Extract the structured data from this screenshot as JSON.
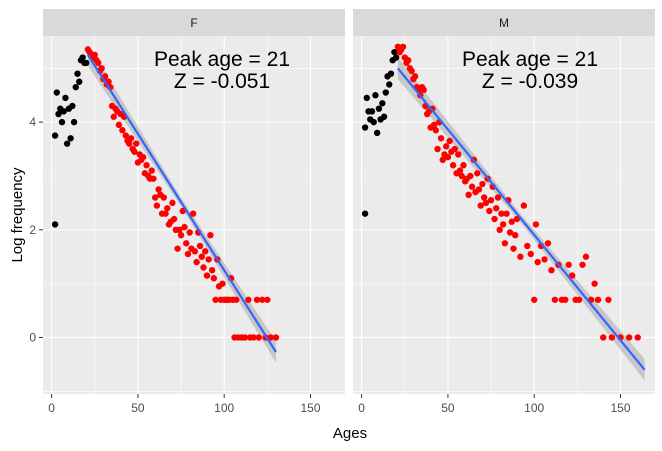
{
  "chart_data": {
    "type": "scatter",
    "xlabel": "Ages",
    "ylabel": "Log frequency",
    "xlim": [
      -5,
      170
    ],
    "ylim": [
      -1.05,
      5.6
    ],
    "x_ticks": [
      0,
      50,
      100,
      150
    ],
    "y_ticks": [
      0,
      2,
      4
    ],
    "grid": true,
    "colors": {
      "pre_peak": "#000000",
      "post_peak": "#ff0000",
      "fit_line": "#3366ff",
      "ribbon": "#a9a9a9",
      "panel_bg": "#ebebeb",
      "strip_bg": "#d9d9d9",
      "grid": "#ffffff"
    },
    "panels": [
      {
        "strip": "F",
        "annotation_line1": "Peak age = 21",
        "annotation_line2": "Z = -0.051",
        "peak_age": 21,
        "fit": {
          "x": [
            21,
            130
          ],
          "y": [
            5.25,
            -0.27
          ]
        },
        "pre_peak": {
          "x": [
            2,
            2,
            3,
            4,
            5,
            6,
            7,
            8,
            9,
            10,
            11,
            12,
            13,
            14,
            15,
            16,
            17,
            18,
            19,
            20
          ],
          "y": [
            2.1,
            3.75,
            4.55,
            4.15,
            4.25,
            4.0,
            4.2,
            4.45,
            3.6,
            4.25,
            3.7,
            4.3,
            4.0,
            4.65,
            4.9,
            4.75,
            5.15,
            5.2,
            5.1,
            5.1
          ]
        },
        "post_peak": {
          "x": [
            21,
            22,
            23,
            24,
            25,
            26,
            27,
            28,
            29,
            30,
            31,
            32,
            33,
            34,
            35,
            36,
            37,
            38,
            39,
            40,
            41,
            42,
            43,
            44,
            45,
            46,
            47,
            48,
            49,
            50,
            51,
            52,
            53,
            54,
            55,
            56,
            57,
            58,
            59,
            60,
            61,
            62,
            63,
            64,
            65,
            66,
            67,
            68,
            69,
            70,
            71,
            72,
            73,
            74,
            75,
            76,
            77,
            78,
            79,
            80,
            81,
            82,
            83,
            84,
            85,
            86,
            87,
            88,
            89,
            90,
            91,
            92,
            93,
            94,
            95,
            96,
            97,
            98,
            99,
            100,
            101,
            102,
            103,
            104,
            105,
            106,
            107,
            108,
            110,
            112,
            114,
            115,
            117,
            119,
            120,
            122,
            124,
            125,
            127,
            130
          ],
          "y": [
            5.35,
            5.3,
            5.25,
            5.2,
            5.25,
            5.15,
            5.1,
            4.95,
            5.0,
            4.8,
            4.85,
            4.7,
            4.75,
            4.65,
            4.3,
            4.1,
            4.25,
            4.2,
            3.95,
            4.15,
            3.85,
            4.1,
            3.75,
            3.65,
            3.6,
            3.7,
            3.5,
            3.45,
            3.6,
            3.25,
            3.4,
            3.3,
            3.35,
            3.05,
            3.2,
            3.0,
            2.95,
            3.1,
            2.95,
            2.6,
            2.45,
            2.75,
            2.65,
            2.3,
            2.6,
            2.3,
            2.4,
            2.1,
            2.15,
            2.5,
            2.2,
            2.0,
            1.65,
            2.0,
            1.9,
            2.35,
            2.05,
            1.75,
            1.55,
            1.95,
            1.65,
            2.3,
            1.6,
            1.4,
            1.95,
            1.7,
            1.5,
            1.3,
            1.6,
            1.15,
            1.45,
            1.9,
            1.25,
            1.1,
            0.7,
            1.45,
            0.95,
            0.7,
            1.0,
            0.7,
            0.7,
            0.7,
            0.7,
            1.1,
            0.7,
            0.0,
            0.7,
            0.0,
            0.0,
            0.0,
            0.7,
            0.0,
            0.0,
            0.7,
            0.0,
            0.7,
            0.0,
            0.7,
            0.0,
            0.0
          ]
        }
      },
      {
        "strip": "M",
        "annotation_line1": "Peak age = 21",
        "annotation_line2": "Z = -0.039",
        "peak_age": 21,
        "fit": {
          "x": [
            21,
            164
          ],
          "y": [
            5.0,
            -0.6
          ]
        },
        "pre_peak": {
          "x": [
            2,
            2,
            3,
            4,
            5,
            6,
            7,
            8,
            9,
            10,
            11,
            12,
            13,
            14,
            15,
            16,
            17,
            18,
            19,
            20
          ],
          "y": [
            2.3,
            3.9,
            4.45,
            4.2,
            4.05,
            4.2,
            4.0,
            4.5,
            3.8,
            4.25,
            4.05,
            4.35,
            4.1,
            4.55,
            4.85,
            4.7,
            4.9,
            5.15,
            5.3,
            5.2
          ]
        },
        "post_peak": {
          "x": [
            21,
            22,
            23,
            24,
            25,
            26,
            27,
            28,
            29,
            30,
            31,
            32,
            33,
            34,
            35,
            36,
            37,
            38,
            39,
            40,
            41,
            42,
            43,
            44,
            45,
            46,
            47,
            48,
            49,
            50,
            51,
            52,
            53,
            54,
            55,
            56,
            57,
            58,
            59,
            60,
            61,
            62,
            63,
            64,
            65,
            66,
            67,
            68,
            69,
            70,
            71,
            72,
            73,
            74,
            75,
            76,
            77,
            78,
            79,
            80,
            81,
            82,
            83,
            84,
            85,
            86,
            87,
            88,
            89,
            90,
            92,
            94,
            96,
            98,
            100,
            101,
            102,
            104,
            106,
            108,
            110,
            112,
            114,
            116,
            118,
            120,
            122,
            124,
            126,
            128,
            130,
            133,
            135,
            137,
            140,
            143,
            145,
            150,
            155,
            160
          ],
          "y": [
            5.4,
            5.3,
            5.35,
            5.4,
            5.2,
            5.1,
            5.15,
            5.0,
            4.95,
            4.8,
            4.85,
            4.65,
            4.6,
            4.5,
            4.65,
            4.6,
            4.3,
            4.15,
            4.2,
            3.9,
            4.25,
            3.95,
            3.85,
            3.5,
            4.0,
            3.7,
            3.3,
            3.4,
            3.55,
            3.35,
            3.65,
            3.45,
            3.2,
            3.5,
            3.05,
            3.4,
            3.1,
            3.0,
            3.2,
            2.9,
            2.95,
            2.65,
            3.0,
            2.8,
            3.3,
            2.7,
            3.05,
            2.75,
            2.45,
            2.85,
            2.6,
            2.5,
            2.95,
            2.35,
            2.55,
            2.8,
            2.2,
            2.4,
            2.6,
            2.0,
            2.3,
            2.1,
            1.75,
            2.3,
            2.55,
            1.95,
            2.15,
            1.65,
            1.9,
            2.2,
            1.5,
            2.45,
            1.7,
            1.55,
            0.7,
            2.1,
            1.4,
            1.7,
            1.45,
            1.75,
            1.25,
            0.7,
            1.35,
            0.7,
            0.7,
            1.35,
            1.15,
            0.7,
            0.7,
            1.35,
            1.5,
            0.7,
            1.0,
            0.7,
            0.0,
            0.7,
            0.0,
            0.0,
            0.0,
            0.0
          ]
        }
      }
    ]
  }
}
